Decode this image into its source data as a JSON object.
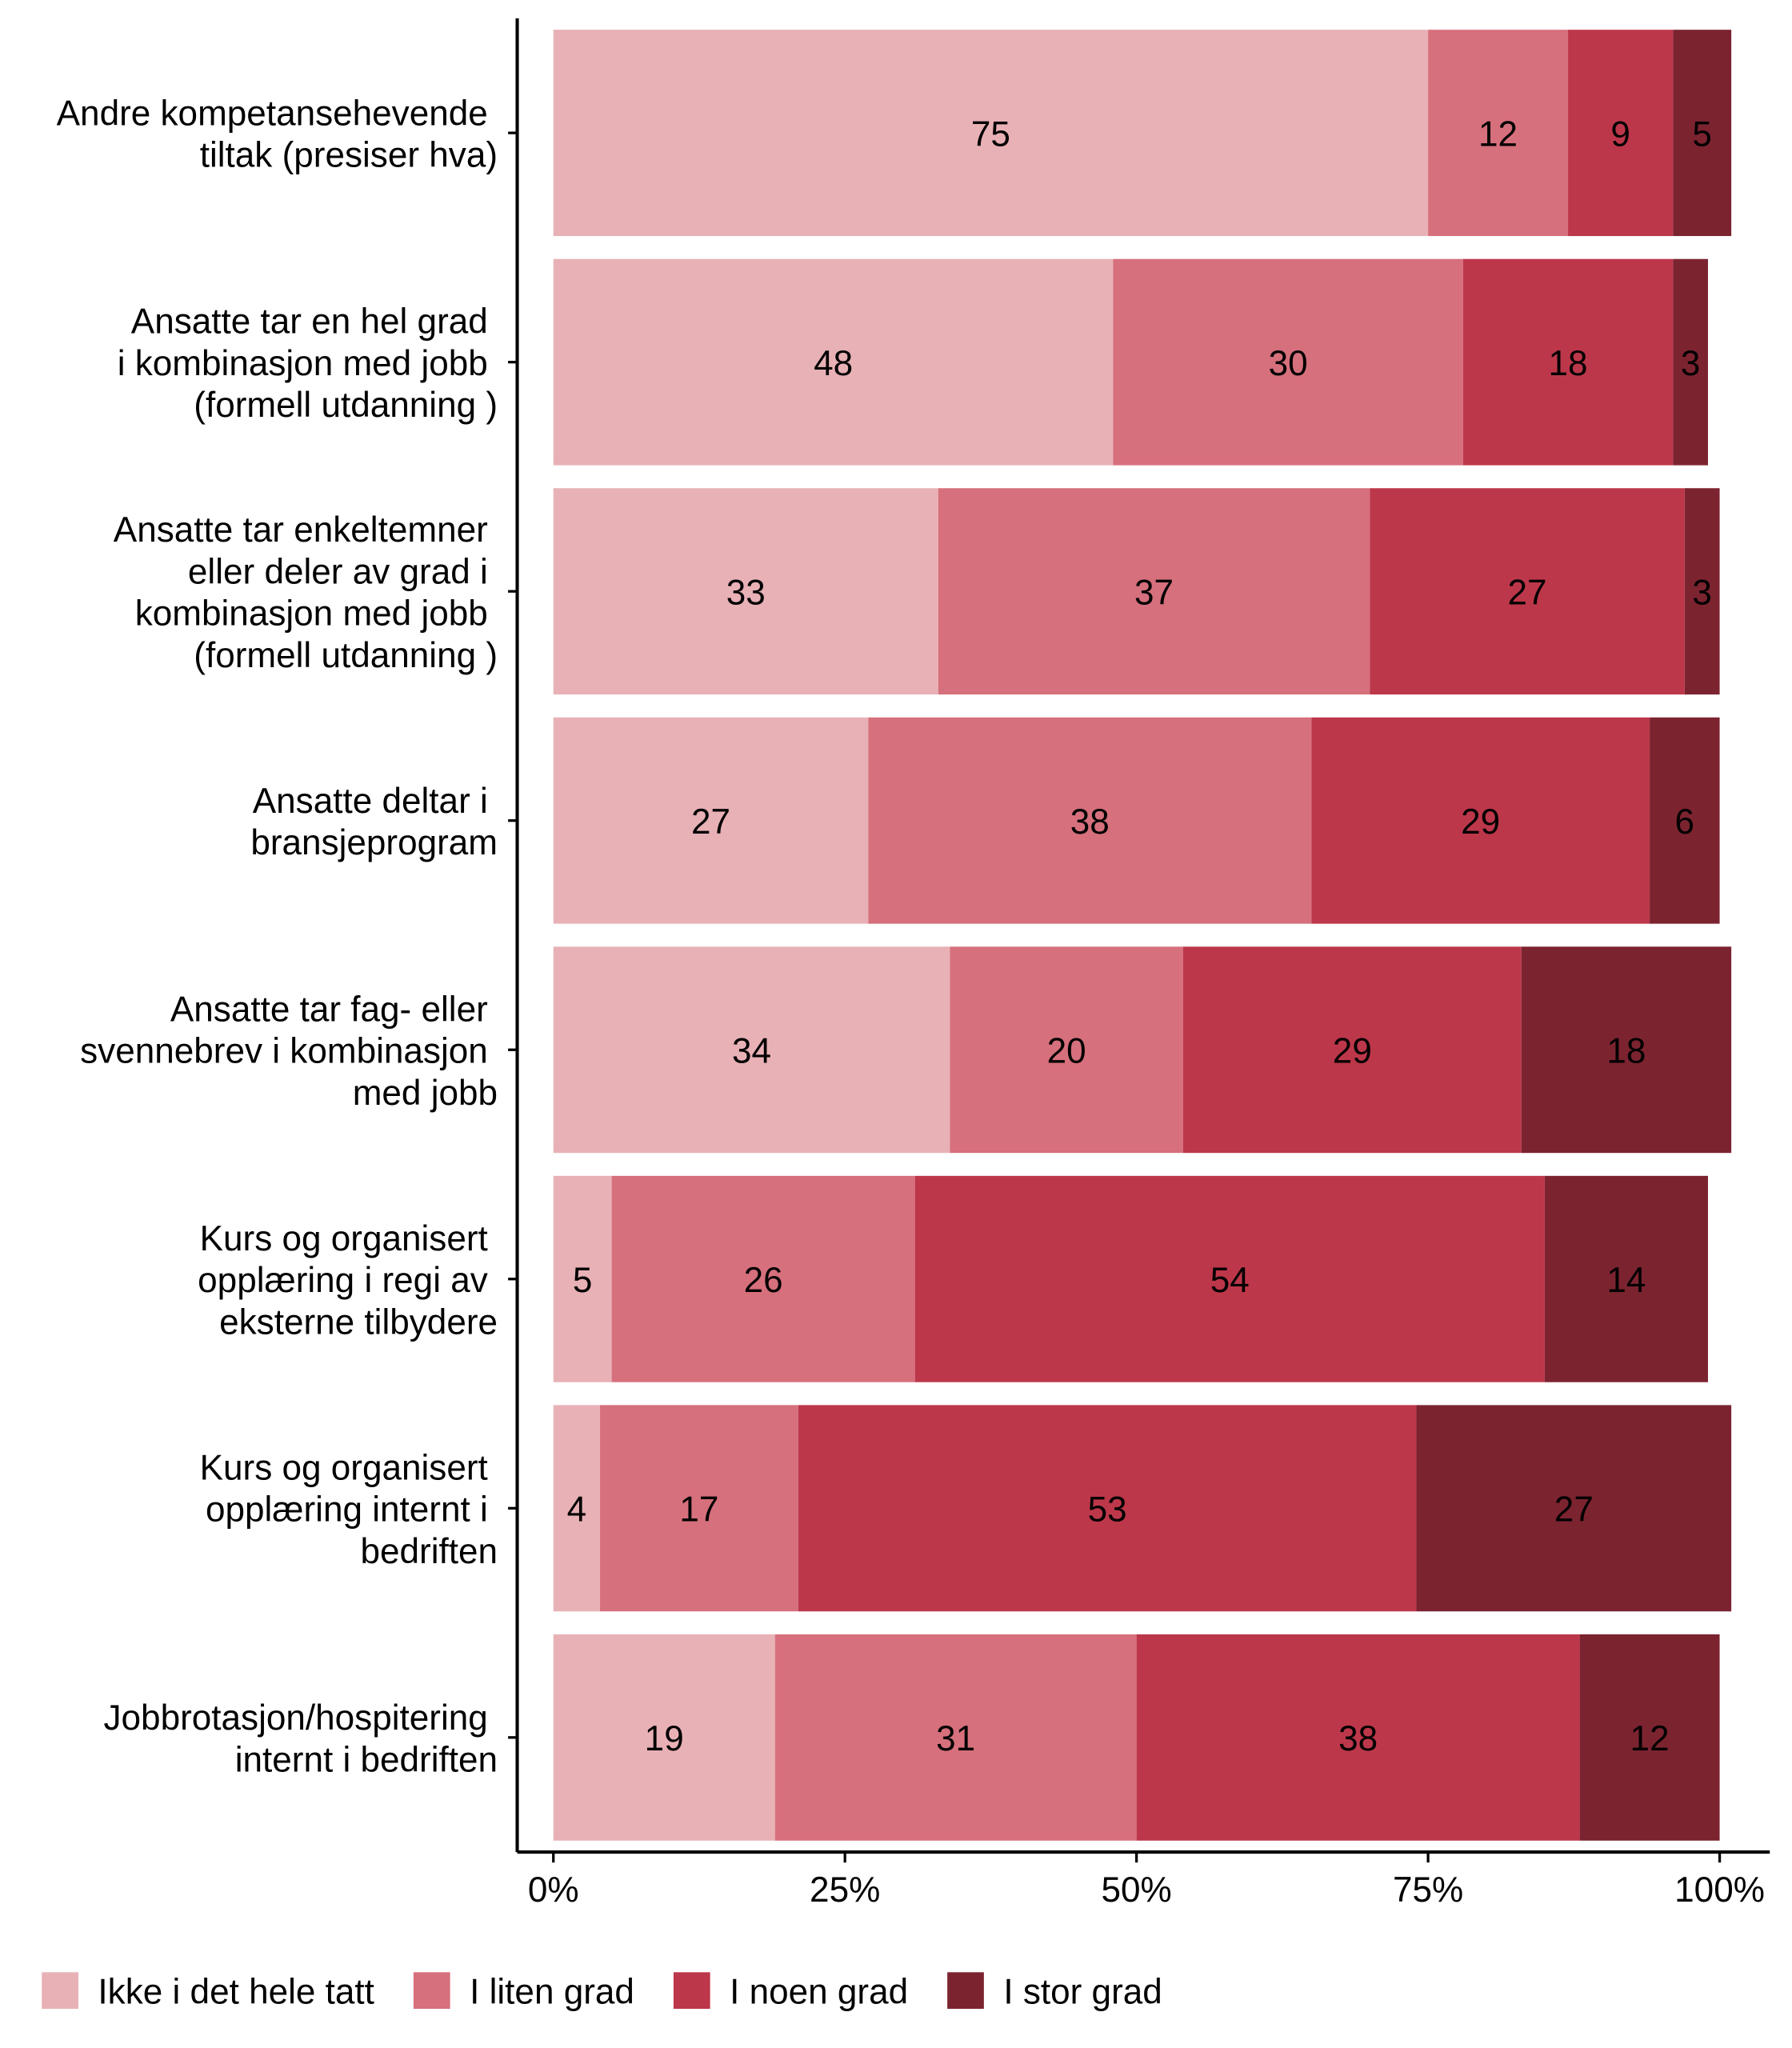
{
  "chart_data": {
    "type": "stacked_bar_horizontal",
    "categories": [
      "Andre kompetansehevende\ntiltak (presiser hva)",
      "Ansatte tar en hel grad\ni kombinasjon med jobb\n(formell utdanning )",
      "Ansatte tar enkeltemner\neller deler av grad i\nkombinasjon med jobb\n(formell utdanning )",
      "Ansatte deltar i\nbransjeprogram",
      "Ansatte tar fag- eller\nsvennebrev i kombinasjon\nmed jobb",
      "Kurs og organisert\nopplæring i regi av\neksterne tilbydere",
      "Kurs og organisert\nopplæring internt i\nbedriften",
      "Jobbrotasjon/hospitering\ninternt i bedriften"
    ],
    "series": [
      {
        "name": "Ikke i det hele tatt",
        "color": "#e8b1b6",
        "values": [
          75,
          48,
          33,
          27,
          34,
          5,
          4,
          19
        ]
      },
      {
        "name": "I liten grad",
        "color": "#d6707c",
        "values": [
          12,
          30,
          37,
          38,
          20,
          26,
          17,
          31
        ]
      },
      {
        "name": "I noen grad",
        "color": "#bd374a",
        "values": [
          9,
          18,
          27,
          29,
          29,
          54,
          53,
          38
        ]
      },
      {
        "name": "I stor grad",
        "color": "#7c2330",
        "values": [
          5,
          3,
          3,
          6,
          18,
          14,
          27,
          12
        ]
      }
    ],
    "xlim": [
      -3.1,
      104.3
    ],
    "xticks": [
      {
        "value": 0,
        "label": "0%"
      },
      {
        "value": 25,
        "label": "25%"
      },
      {
        "value": 50,
        "label": "50%"
      },
      {
        "value": 75,
        "label": "75%"
      },
      {
        "value": 100,
        "label": "100%"
      }
    ],
    "legend": "bottom"
  }
}
